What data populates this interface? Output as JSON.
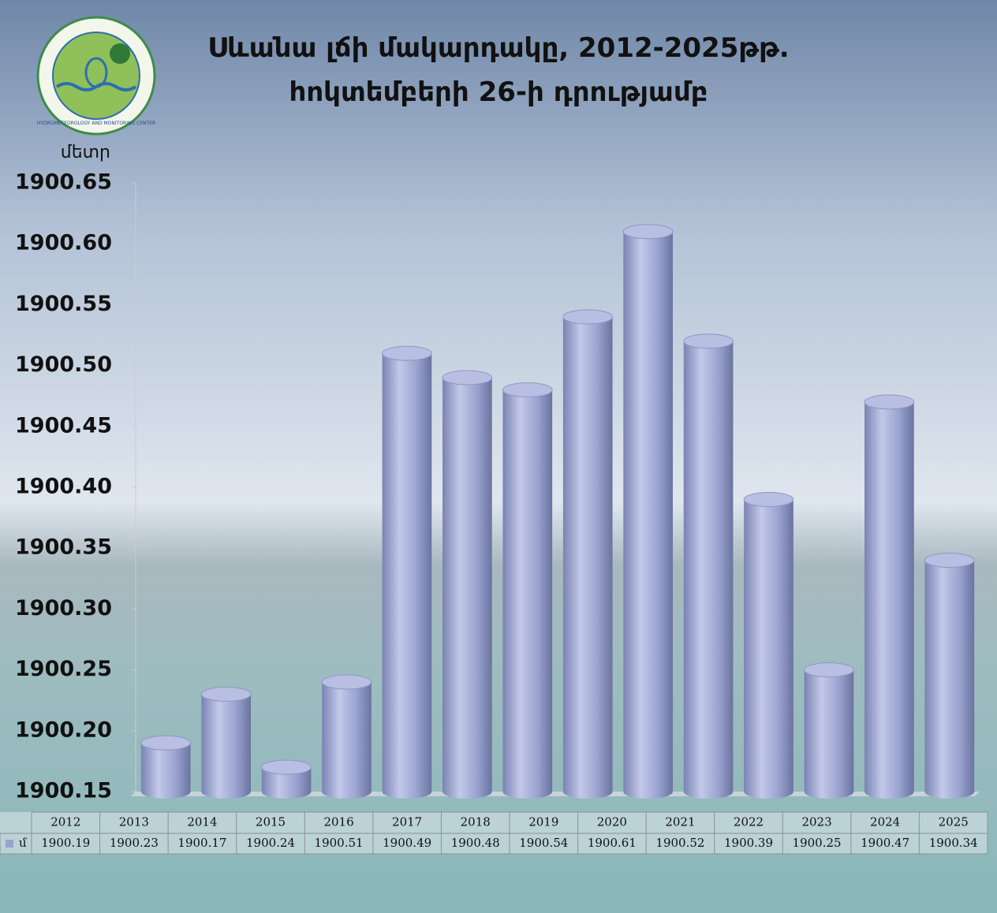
{
  "chart_data": {
    "type": "bar",
    "title": "Սևանա լճի մակարդակը, 2012-2025թթ.",
    "subtitle": "հոկտեմբերի 26-ի դրությամբ",
    "y_label": "մետր",
    "logo_text": "HYDROMETEOROLOGY AND MONITORING CENTER",
    "categories": [
      "2012",
      "2013",
      "2014",
      "2015",
      "2016",
      "2017",
      "2018",
      "2019",
      "2020",
      "2021",
      "2022",
      "2023",
      "2024",
      "2025"
    ],
    "series": [
      {
        "name": "մ",
        "color": "#9aa3cf",
        "values": [
          1900.19,
          1900.23,
          1900.17,
          1900.24,
          1900.51,
          1900.49,
          1900.48,
          1900.54,
          1900.61,
          1900.52,
          1900.39,
          1900.25,
          1900.47,
          1900.34
        ]
      }
    ],
    "ylim": [
      1900.15,
      1900.65
    ],
    "yticks": [
      1900.15,
      {
        "value": 1900.2,
        "label": "1900.20"
      },
      1900.25,
      {
        "value": 1900.3,
        "label": "1900.30"
      },
      1900.35,
      {
        "value": 1900.4,
        "label": "1900.40"
      },
      1900.45,
      {
        "value": 1900.5,
        "label": "1900.50"
      },
      1900.55,
      {
        "value": 1900.6,
        "label": "1900.60"
      },
      1900.65
    ],
    "data_table": true
  }
}
